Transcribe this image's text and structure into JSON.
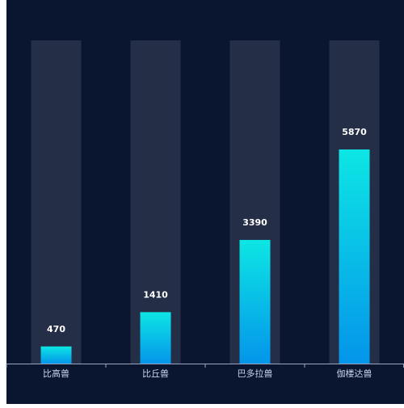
{
  "chart_data": {
    "type": "bar",
    "categories": [
      "比高兽",
      "比丘兽",
      "巴多拉兽",
      "伽楼达兽"
    ],
    "values": [
      470,
      1410,
      3390,
      5870
    ],
    "ylim": [
      0,
      8860
    ],
    "grid": false,
    "legend": "none",
    "title": "",
    "xlabel": "",
    "ylabel": ""
  },
  "colors": {
    "background": "#0a1530",
    "track": "#252e47",
    "bar_top": "#0de6e4",
    "bar_bottom": "#0495ea",
    "axis": "#9aa6bd",
    "tick_label": "#c6d4ea",
    "value_label": "#ffffff"
  }
}
